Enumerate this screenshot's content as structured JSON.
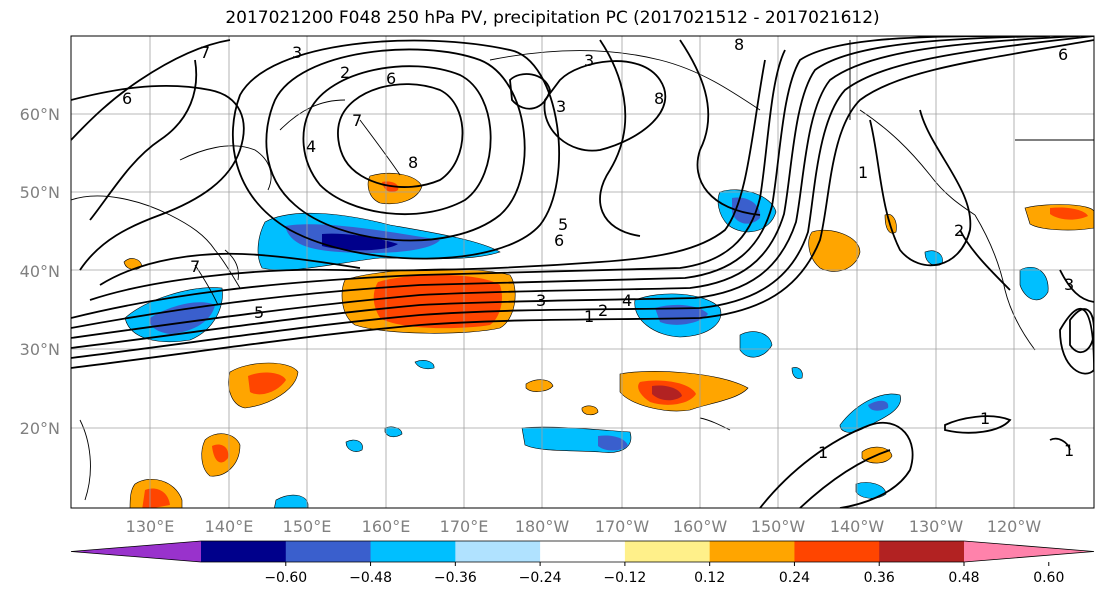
{
  "title": "2017021200 F048 250 hPa PV, precipitation PC (2017021512 - 2017021612)",
  "lat_labels": [
    "60°N",
    "50°N",
    "40°N",
    "30°N",
    "20°N"
  ],
  "lon_labels": [
    "130°E",
    "140°E",
    "150°E",
    "160°E",
    "170°E",
    "180°W",
    "170°W",
    "160°W",
    "150°W",
    "140°W",
    "130°W",
    "120°W"
  ],
  "colorbar": {
    "ticks": [
      "−0.60",
      "−0.48",
      "−0.36",
      "−0.24",
      "−0.12",
      "0.12",
      "0.24",
      "0.36",
      "0.48",
      "0.60"
    ],
    "colors": [
      "#9932cc",
      "#00008b",
      "#3a5fcd",
      "#00bfff",
      "#b0e2ff",
      "#ffffff",
      "#fff08a",
      "#ffa500",
      "#ff4500",
      "#b22222",
      "#ff82ab"
    ]
  },
  "contour_labels": [
    "7",
    "3",
    "2",
    "6",
    "6",
    "6",
    "7",
    "8",
    "8",
    "8",
    "3",
    "3",
    "4",
    "5",
    "6",
    "7",
    "5",
    "3",
    "2",
    "1",
    "4",
    "1",
    "2",
    "3",
    "1",
    "1",
    "1",
    "6"
  ]
}
